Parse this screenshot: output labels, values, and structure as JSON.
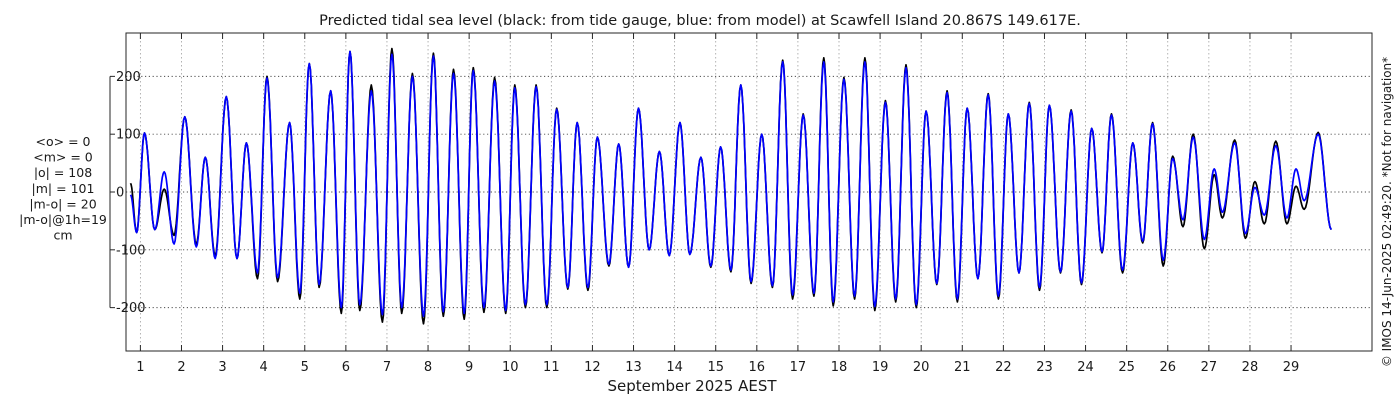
{
  "chart_data": {
    "type": "line",
    "title": "Predicted tidal sea level (black: from tide gauge, blue: from model) at Scawfell Island 20.867S 149.617E.",
    "xlabel": "September 2025 AEST",
    "ylabel": "",
    "xlim": [
      0.65,
      30.97
    ],
    "ylim": [
      -275,
      275
    ],
    "x_ticks": [
      1,
      2,
      3,
      4,
      5,
      6,
      7,
      8,
      9,
      10,
      11,
      12,
      13,
      14,
      15,
      16,
      17,
      18,
      19,
      20,
      21,
      22,
      23,
      24,
      25,
      26,
      27,
      28,
      29
    ],
    "y_ticks": [
      -200,
      -100,
      0,
      100,
      200
    ],
    "y_tick_labels": [
      "-200",
      "-100",
      "0",
      "100",
      "200"
    ],
    "grid": true,
    "series": [
      {
        "name": "from tide gauge",
        "color": "#000000",
        "peaks": [
          [
            0.76,
            15
          ],
          [
            0.91,
            -70
          ],
          [
            1.1,
            102
          ],
          [
            1.35,
            -65
          ],
          [
            1.58,
            5
          ],
          [
            1.82,
            -75
          ],
          [
            2.08,
            130
          ],
          [
            2.36,
            -90
          ],
          [
            2.58,
            60
          ],
          [
            2.82,
            -110
          ],
          [
            3.09,
            165
          ],
          [
            3.35,
            -115
          ],
          [
            3.58,
            85
          ],
          [
            3.85,
            -150
          ],
          [
            4.08,
            200
          ],
          [
            4.34,
            -155
          ],
          [
            4.63,
            120
          ],
          [
            4.88,
            -185
          ],
          [
            5.11,
            222
          ],
          [
            5.35,
            -165
          ],
          [
            5.63,
            175
          ],
          [
            5.89,
            -210
          ],
          [
            6.1,
            243
          ],
          [
            6.34,
            -205
          ],
          [
            6.62,
            185
          ],
          [
            6.89,
            -225
          ],
          [
            7.12,
            248
          ],
          [
            7.36,
            -210
          ],
          [
            7.62,
            205
          ],
          [
            7.89,
            -228
          ],
          [
            8.13,
            240
          ],
          [
            8.37,
            -215
          ],
          [
            8.62,
            212
          ],
          [
            8.88,
            -220
          ],
          [
            9.1,
            215
          ],
          [
            9.36,
            -208
          ],
          [
            9.62,
            198
          ],
          [
            9.89,
            -210
          ],
          [
            10.11,
            185
          ],
          [
            10.37,
            -200
          ],
          [
            10.63,
            185
          ],
          [
            10.89,
            -200
          ],
          [
            11.13,
            145
          ],
          [
            11.4,
            -168
          ],
          [
            11.63,
            120
          ],
          [
            11.89,
            -170
          ],
          [
            12.12,
            95
          ],
          [
            12.4,
            -128
          ],
          [
            12.64,
            83
          ],
          [
            12.88,
            -130
          ],
          [
            13.12,
            145
          ],
          [
            13.38,
            -100
          ],
          [
            13.63,
            70
          ],
          [
            13.87,
            -110
          ],
          [
            14.13,
            120
          ],
          [
            14.37,
            -108
          ],
          [
            14.64,
            60
          ],
          [
            14.88,
            -130
          ],
          [
            15.12,
            78
          ],
          [
            15.37,
            -138
          ],
          [
            15.61,
            185
          ],
          [
            15.86,
            -158
          ],
          [
            16.12,
            100
          ],
          [
            16.38,
            -165
          ],
          [
            16.63,
            228
          ],
          [
            16.87,
            -185
          ],
          [
            17.13,
            135
          ],
          [
            17.39,
            -180
          ],
          [
            17.63,
            232
          ],
          [
            17.86,
            -197
          ],
          [
            18.12,
            198
          ],
          [
            18.38,
            -185
          ],
          [
            18.63,
            232
          ],
          [
            18.87,
            -205
          ],
          [
            19.13,
            158
          ],
          [
            19.38,
            -190
          ],
          [
            19.63,
            220
          ],
          [
            19.88,
            -200
          ],
          [
            20.12,
            140
          ],
          [
            20.38,
            -160
          ],
          [
            20.63,
            175
          ],
          [
            20.88,
            -190
          ],
          [
            21.12,
            145
          ],
          [
            21.38,
            -150
          ],
          [
            21.63,
            170
          ],
          [
            21.88,
            -185
          ],
          [
            22.12,
            135
          ],
          [
            22.38,
            -140
          ],
          [
            22.63,
            155
          ],
          [
            22.88,
            -170
          ],
          [
            23.12,
            150
          ],
          [
            23.39,
            -140
          ],
          [
            23.65,
            142
          ],
          [
            23.9,
            -160
          ],
          [
            24.15,
            110
          ],
          [
            24.4,
            -105
          ],
          [
            24.63,
            135
          ],
          [
            24.9,
            -140
          ],
          [
            25.15,
            85
          ],
          [
            25.39,
            -88
          ],
          [
            25.63,
            120
          ],
          [
            25.89,
            -128
          ],
          [
            26.12,
            62
          ],
          [
            26.37,
            -60
          ],
          [
            26.62,
            100
          ],
          [
            26.89,
            -98
          ],
          [
            27.13,
            30
          ],
          [
            27.33,
            -45
          ],
          [
            27.63,
            90
          ],
          [
            27.89,
            -80
          ],
          [
            28.12,
            18
          ],
          [
            28.35,
            -55
          ],
          [
            28.63,
            88
          ],
          [
            28.9,
            -55
          ],
          [
            29.12,
            10
          ],
          [
            29.32,
            -30
          ],
          [
            29.66,
            103
          ],
          [
            29.98,
            -65
          ]
        ]
      },
      {
        "name": "from model",
        "color": "#0000ff",
        "peaks": [
          [
            0.76,
            -5
          ],
          [
            0.91,
            -70
          ],
          [
            1.1,
            102
          ],
          [
            1.35,
            -65
          ],
          [
            1.58,
            35
          ],
          [
            1.82,
            -90
          ],
          [
            2.08,
            130
          ],
          [
            2.36,
            -95
          ],
          [
            2.58,
            60
          ],
          [
            2.82,
            -115
          ],
          [
            3.09,
            165
          ],
          [
            3.35,
            -115
          ],
          [
            3.58,
            85
          ],
          [
            3.85,
            -140
          ],
          [
            4.08,
            197
          ],
          [
            4.34,
            -148
          ],
          [
            4.63,
            120
          ],
          [
            4.88,
            -175
          ],
          [
            5.11,
            222
          ],
          [
            5.35,
            -160
          ],
          [
            5.63,
            175
          ],
          [
            5.89,
            -200
          ],
          [
            6.1,
            243
          ],
          [
            6.34,
            -195
          ],
          [
            6.62,
            175
          ],
          [
            6.89,
            -212
          ],
          [
            7.12,
            238
          ],
          [
            7.36,
            -200
          ],
          [
            7.62,
            200
          ],
          [
            7.89,
            -215
          ],
          [
            8.13,
            235
          ],
          [
            8.37,
            -207
          ],
          [
            8.62,
            205
          ],
          [
            8.88,
            -210
          ],
          [
            9.1,
            210
          ],
          [
            9.36,
            -200
          ],
          [
            9.62,
            192
          ],
          [
            9.89,
            -205
          ],
          [
            10.11,
            180
          ],
          [
            10.37,
            -195
          ],
          [
            10.63,
            182
          ],
          [
            10.89,
            -195
          ],
          [
            11.13,
            143
          ],
          [
            11.4,
            -165
          ],
          [
            11.63,
            120
          ],
          [
            11.89,
            -165
          ],
          [
            12.12,
            95
          ],
          [
            12.4,
            -125
          ],
          [
            12.64,
            83
          ],
          [
            12.88,
            -130
          ],
          [
            13.12,
            145
          ],
          [
            13.38,
            -100
          ],
          [
            13.63,
            70
          ],
          [
            13.87,
            -110
          ],
          [
            14.13,
            120
          ],
          [
            14.37,
            -108
          ],
          [
            14.64,
            60
          ],
          [
            14.88,
            -128
          ],
          [
            15.12,
            78
          ],
          [
            15.37,
            -135
          ],
          [
            15.61,
            185
          ],
          [
            15.86,
            -155
          ],
          [
            16.12,
            100
          ],
          [
            16.38,
            -162
          ],
          [
            16.63,
            225
          ],
          [
            16.87,
            -178
          ],
          [
            17.13,
            133
          ],
          [
            17.39,
            -175
          ],
          [
            17.63,
            225
          ],
          [
            17.86,
            -190
          ],
          [
            18.12,
            195
          ],
          [
            18.38,
            -180
          ],
          [
            18.63,
            225
          ],
          [
            18.87,
            -198
          ],
          [
            19.13,
            155
          ],
          [
            19.38,
            -185
          ],
          [
            19.63,
            215
          ],
          [
            19.88,
            -195
          ],
          [
            20.12,
            140
          ],
          [
            20.38,
            -158
          ],
          [
            20.63,
            172
          ],
          [
            20.88,
            -185
          ],
          [
            21.12,
            145
          ],
          [
            21.38,
            -150
          ],
          [
            21.63,
            168
          ],
          [
            21.88,
            -180
          ],
          [
            22.12,
            135
          ],
          [
            22.38,
            -140
          ],
          [
            22.63,
            153
          ],
          [
            22.88,
            -165
          ],
          [
            23.12,
            150
          ],
          [
            23.39,
            -138
          ],
          [
            23.65,
            140
          ],
          [
            23.9,
            -157
          ],
          [
            24.15,
            110
          ],
          [
            24.4,
            -103
          ],
          [
            24.63,
            133
          ],
          [
            24.9,
            -135
          ],
          [
            25.15,
            85
          ],
          [
            25.39,
            -85
          ],
          [
            25.63,
            118
          ],
          [
            25.89,
            -118
          ],
          [
            26.12,
            58
          ],
          [
            26.37,
            -48
          ],
          [
            26.62,
            95
          ],
          [
            26.89,
            -82
          ],
          [
            27.13,
            40
          ],
          [
            27.33,
            -35
          ],
          [
            27.63,
            85
          ],
          [
            27.89,
            -72
          ],
          [
            28.12,
            8
          ],
          [
            28.35,
            -40
          ],
          [
            28.63,
            80
          ],
          [
            28.9,
            -45
          ],
          [
            29.12,
            40
          ],
          [
            29.32,
            -15
          ],
          [
            29.66,
            100
          ],
          [
            29.98,
            -65
          ]
        ]
      }
    ],
    "stats": [
      "<o> = 0",
      "<m> = 0",
      "|o| = 108",
      "|m| = 101",
      "|m-o| = 20",
      "|m-o|@1h=19",
      "cm"
    ],
    "credit": "© IMOS 14-Jun-2025 02:49:20. *Not for navigation*"
  }
}
